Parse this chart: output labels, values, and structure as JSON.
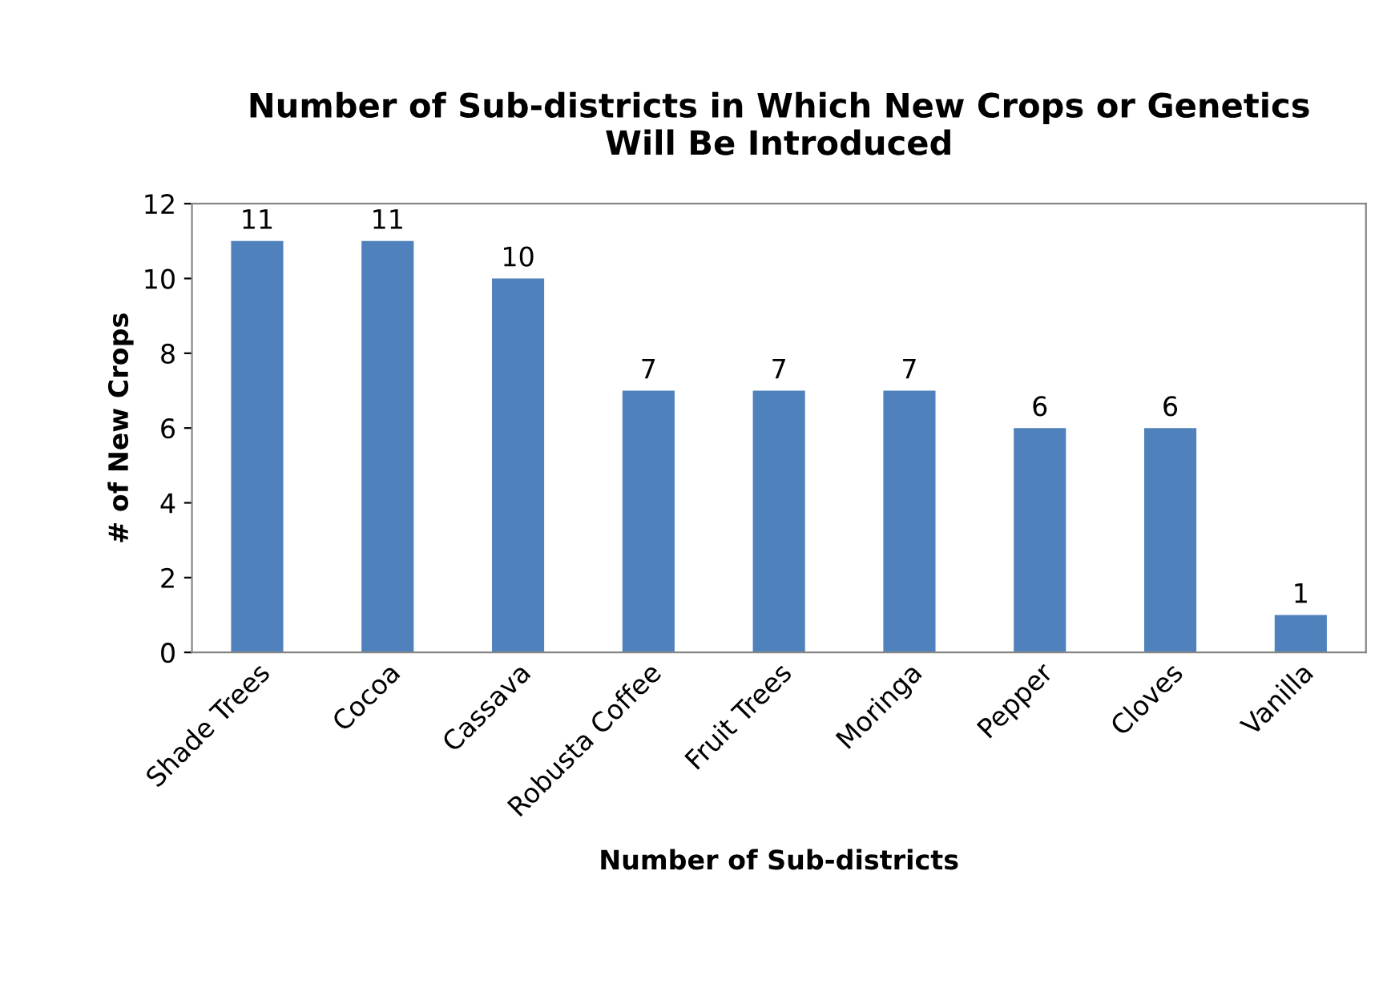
{
  "chart_data": {
    "type": "bar",
    "title": "Number of Sub-districts in Which New Crops or Genetics\nWill Be Introduced",
    "xlabel": "Number of Sub-districts",
    "ylabel": "# of New Crops",
    "categories": [
      "Shade Trees",
      "Cocoa",
      "Cassava",
      "Robusta Coffee",
      "Fruit Trees",
      "Moringa",
      "Pepper",
      "Cloves",
      "Vanilla"
    ],
    "values": [
      11,
      11,
      10,
      7,
      7,
      7,
      6,
      6,
      1
    ],
    "color": "#4f81bd",
    "ylim": [
      0,
      12
    ],
    "yticks": [
      0,
      2,
      4,
      6,
      8,
      10,
      12
    ],
    "grid": false,
    "data_labels": true,
    "legend": false
  }
}
